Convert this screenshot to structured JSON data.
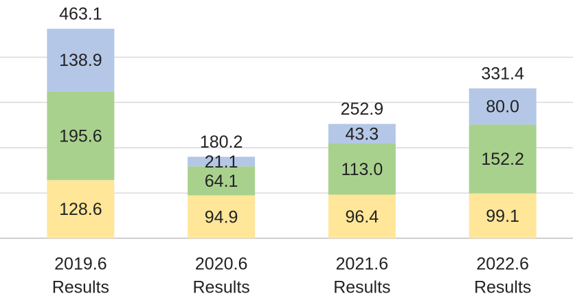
{
  "chart_data": {
    "type": "stacked_bar",
    "categories": [
      [
        "2019.6",
        "Results"
      ],
      [
        "2020.6",
        "Results"
      ],
      [
        "2021.6",
        "Results"
      ],
      [
        "2022.6",
        "Results"
      ]
    ],
    "series": [
      {
        "color": "#ffe699",
        "values": [
          128.6,
          94.9,
          96.4,
          99.1
        ]
      },
      {
        "color": "#a9d18e",
        "values": [
          195.6,
          64.1,
          113.0,
          152.2
        ],
        "value_labels": [
          "195.6",
          "64.1",
          "113.0",
          "152.2"
        ]
      },
      {
        "color": "#b4c7e7",
        "values": [
          138.9,
          21.1,
          43.3,
          80.0
        ],
        "value_labels": [
          "138.9",
          "21.1",
          "43.3",
          "80.0"
        ]
      }
    ],
    "totals": [
      463.1,
      180.2,
      252.9,
      331.4
    ],
    "ylim": [
      0,
      500
    ],
    "yticks": [
      0,
      100,
      200,
      300,
      400
    ],
    "grid": true
  }
}
